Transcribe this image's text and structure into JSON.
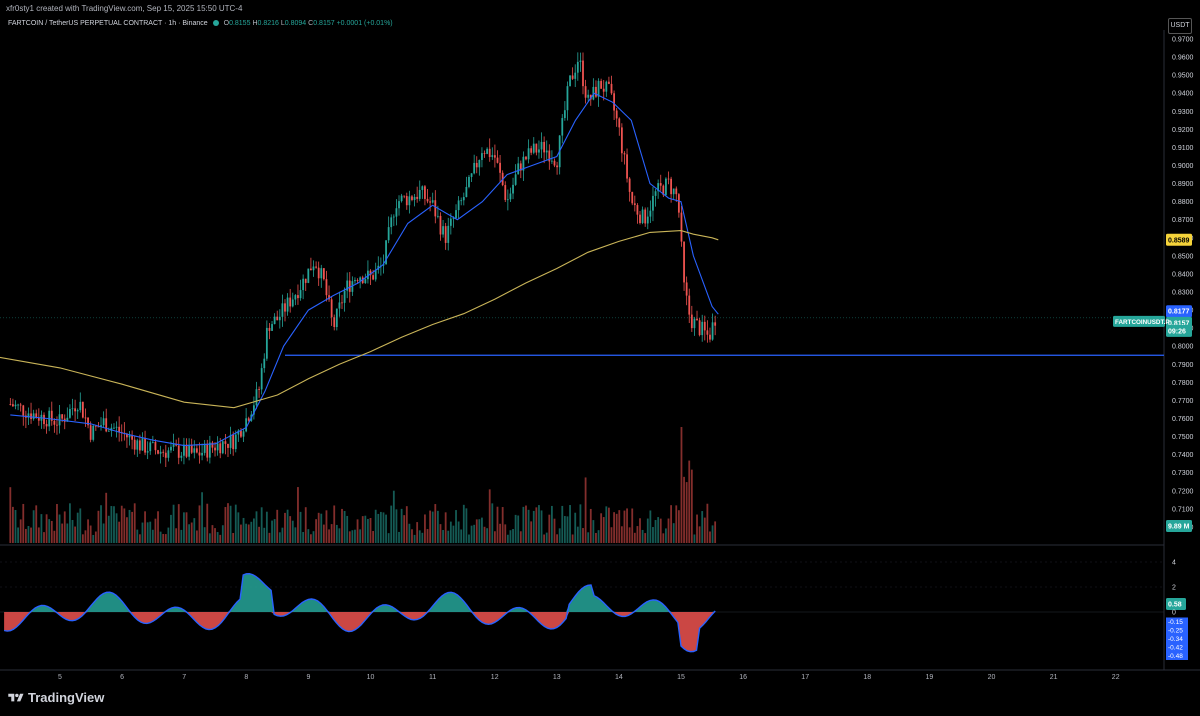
{
  "header": {
    "credit": "xfr0sty1 created with TradingView.com, Sep 15, 2025 15:50 UTC-4",
    "symbol_line": "FARTCOIN / TetherUS PERPETUAL CONTRACT · 1h · Binance",
    "ohlc": {
      "o_label": "O",
      "o": "0.8155",
      "h_label": "H",
      "h": "0.8216",
      "l_label": "L",
      "l": "0.8094",
      "c_label": "C",
      "c": "0.8157",
      "change": "+0.0001 (+0.01%)"
    }
  },
  "unit": "USDT",
  "brand": "TradingView",
  "price_labels": {
    "ma_value": "0.8589",
    "ema_value": "0.8177",
    "symbol_tag": "FARTCOINUSDT.P",
    "last_price": "0.8157",
    "countdown": "09:26",
    "volume_value": "9.89 M"
  },
  "osc_labels": {
    "current": "0.58",
    "zero": "0",
    "neg": [
      "-0.15",
      "-0.25",
      "-0.34",
      "-0.42",
      "-0.48"
    ]
  },
  "colors": {
    "up": "#26a69a",
    "down": "#ef5350",
    "ema": "#2962ff",
    "ma": "#c9b458",
    "hline": "#2962ff",
    "osc_pos": "#26a69a",
    "osc_neg": "#ef5350"
  },
  "chart_data": {
    "type": "line",
    "title": "FARTCOIN / TetherUS PERPETUAL CONTRACT · 1h · Binance",
    "ylabel": "USDT",
    "ylim": [
      0.69,
      0.975
    ],
    "y_ticks": [
      "0.9700",
      "0.9600",
      "0.9500",
      "0.9400",
      "0.9300",
      "0.9200",
      "0.9100",
      "0.9000",
      "0.8900",
      "0.8800",
      "0.8700",
      "0.8600",
      "0.8500",
      "0.8400",
      "0.8300",
      "0.8200",
      "0.8100",
      "0.8000",
      "0.7900",
      "0.7800",
      "0.7700",
      "0.7600",
      "0.7500",
      "0.7400",
      "0.7300",
      "0.7200",
      "0.7100",
      "0.7000"
    ],
    "x_tick_labels": [
      "5",
      "6",
      "7",
      "8",
      "9",
      "10",
      "11",
      "12",
      "13",
      "14",
      "15",
      "16",
      "17",
      "18",
      "19",
      "20",
      "21",
      "22"
    ],
    "horizontal_line": 0.795,
    "series": [
      {
        "name": "price",
        "x": [
          4.2,
          4.6,
          5.0,
          5.3,
          5.5,
          5.7,
          6.0,
          6.3,
          6.6,
          6.9,
          7.2,
          7.5,
          7.8,
          8.0,
          8.2,
          8.35,
          8.5,
          8.7,
          8.9,
          9.1,
          9.25,
          9.4,
          9.6,
          9.8,
          10.0,
          10.2,
          10.4,
          10.6,
          10.8,
          11.0,
          11.2,
          11.4,
          11.6,
          11.8,
          12.0,
          12.2,
          12.4,
          12.6,
          12.8,
          13.0,
          13.2,
          13.35,
          13.5,
          13.7,
          13.85,
          14.0,
          14.2,
          14.4,
          14.6,
          14.8,
          14.95,
          15.05,
          15.15,
          15.3,
          15.45,
          15.55
        ],
        "y": [
          0.768,
          0.762,
          0.758,
          0.77,
          0.752,
          0.758,
          0.752,
          0.745,
          0.742,
          0.742,
          0.74,
          0.745,
          0.748,
          0.76,
          0.775,
          0.812,
          0.815,
          0.825,
          0.835,
          0.848,
          0.835,
          0.81,
          0.832,
          0.84,
          0.838,
          0.845,
          0.88,
          0.882,
          0.885,
          0.878,
          0.86,
          0.875,
          0.89,
          0.91,
          0.905,
          0.88,
          0.9,
          0.908,
          0.91,
          0.903,
          0.945,
          0.96,
          0.935,
          0.945,
          0.94,
          0.92,
          0.88,
          0.87,
          0.885,
          0.89,
          0.882,
          0.832,
          0.815,
          0.81,
          0.805,
          0.8157
        ]
      },
      {
        "name": "EMA",
        "x": [
          4.2,
          4.8,
          5.5,
          6.0,
          6.5,
          7.0,
          7.5,
          8.0,
          8.3,
          8.6,
          9.0,
          9.4,
          9.8,
          10.2,
          10.6,
          11.0,
          11.4,
          11.8,
          12.2,
          12.6,
          13.0,
          13.3,
          13.6,
          13.9,
          14.2,
          14.5,
          14.8,
          15.0,
          15.2,
          15.5,
          15.6
        ],
        "y": [
          0.762,
          0.76,
          0.757,
          0.752,
          0.748,
          0.745,
          0.746,
          0.755,
          0.775,
          0.8,
          0.82,
          0.828,
          0.835,
          0.845,
          0.868,
          0.878,
          0.87,
          0.88,
          0.895,
          0.9,
          0.905,
          0.925,
          0.94,
          0.935,
          0.925,
          0.89,
          0.882,
          0.88,
          0.85,
          0.822,
          0.8177
        ]
      },
      {
        "name": "MA",
        "x": [
          4.0,
          5.0,
          6.0,
          7.0,
          7.8,
          8.5,
          9.0,
          9.5,
          10.0,
          10.5,
          11.0,
          11.5,
          12.0,
          12.5,
          13.0,
          13.5,
          14.0,
          14.5,
          15.0,
          15.2,
          15.5,
          15.6
        ],
        "y": [
          0.794,
          0.788,
          0.779,
          0.769,
          0.766,
          0.773,
          0.782,
          0.79,
          0.797,
          0.805,
          0.812,
          0.818,
          0.826,
          0.835,
          0.843,
          0.852,
          0.858,
          0.863,
          0.864,
          0.862,
          0.86,
          0.8589
        ]
      }
    ]
  }
}
